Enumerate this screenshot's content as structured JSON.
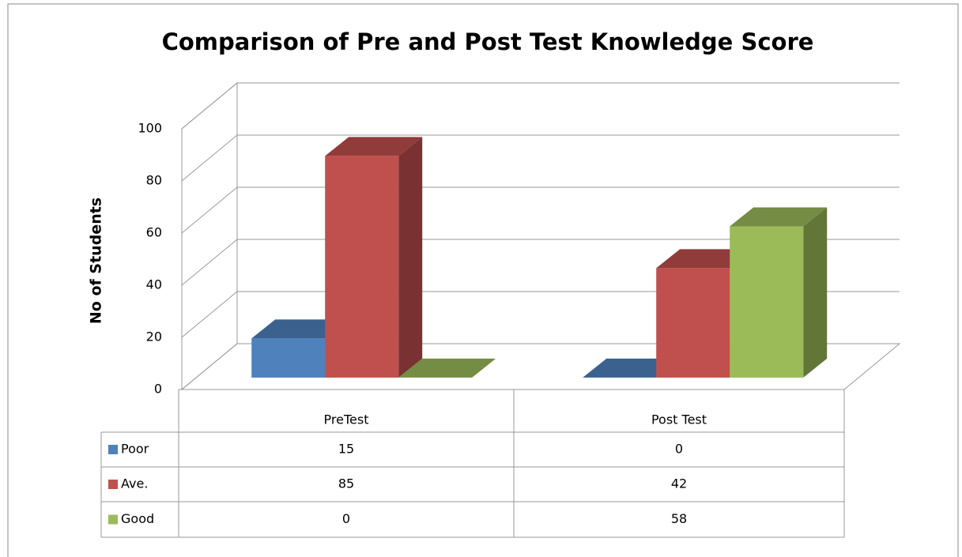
{
  "chart_data": {
    "type": "bar3d",
    "title": "Comparison of Pre and Post Test Knowledge Score",
    "y_label": "No of Students",
    "categories": [
      "PreTest",
      "Post Test"
    ],
    "series": [
      {
        "name": "Poor",
        "color": "#4f81bd",
        "values": [
          15,
          0
        ]
      },
      {
        "name": "Ave.",
        "color": "#c0504d",
        "values": [
          85,
          42
        ]
      },
      {
        "name": "Good",
        "color": "#9bbb59",
        "values": [
          0,
          58
        ]
      }
    ],
    "ylim": [
      0,
      100
    ],
    "yticks": [
      0,
      20,
      40,
      60,
      80,
      100
    ],
    "grid": true,
    "data_table": true
  }
}
